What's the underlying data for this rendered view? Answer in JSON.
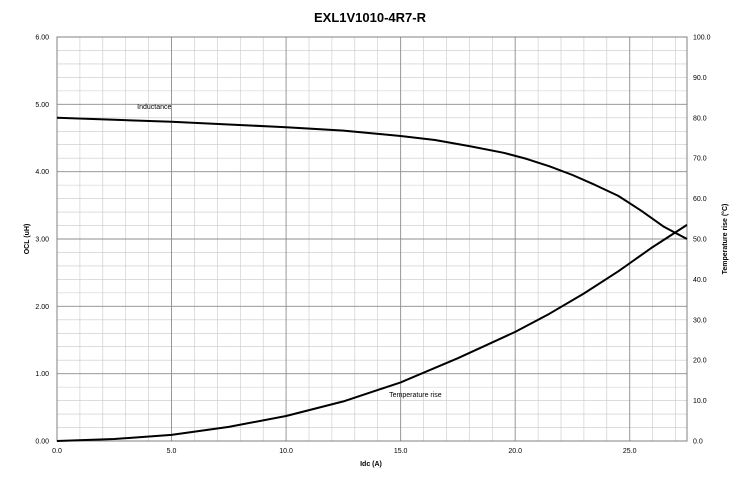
{
  "chart_data": {
    "type": "line",
    "title": "EXL1V1010-4R7-R",
    "xlabel": "Idc (A)",
    "ylabel": "OCL (uH)",
    "y2label": "Temperature rise (°C)",
    "xlim": [
      0,
      27.5
    ],
    "ylim": [
      0,
      6
    ],
    "y2lim": [
      0,
      100
    ],
    "x_ticks": [
      0,
      5,
      10,
      15,
      20,
      25
    ],
    "x_tick_labels": [
      "0.0",
      "5.0",
      "10.0",
      "15.0",
      "20.0",
      "25.0"
    ],
    "y_ticks": [
      0,
      1,
      2,
      3,
      4,
      5,
      6
    ],
    "y_tick_labels": [
      "0.00",
      "1.00",
      "2.00",
      "3.00",
      "4.00",
      "5.00",
      "6.00"
    ],
    "y2_ticks": [
      0,
      10,
      20,
      30,
      40,
      50,
      60,
      70,
      80,
      90,
      100
    ],
    "y2_tick_labels": [
      "0.0",
      "10.0",
      "20.0",
      "30.0",
      "40.0",
      "50.0",
      "60.0",
      "70.0",
      "80.0",
      "90.0",
      "100.0"
    ],
    "grid": true,
    "series": [
      {
        "name": "Inductance",
        "axis": "left",
        "label_at": [
          3.5,
          4.93
        ],
        "color": "#000000",
        "x": [
          0,
          2.5,
          5,
          7.5,
          10,
          12.5,
          15,
          16.5,
          18,
          19.5,
          20.5,
          21.5,
          22.5,
          23.5,
          24.5,
          25.5,
          26.5,
          27.5
        ],
        "y": [
          4.8,
          4.77,
          4.74,
          4.7,
          4.66,
          4.61,
          4.53,
          4.47,
          4.38,
          4.28,
          4.19,
          4.08,
          3.95,
          3.8,
          3.64,
          3.42,
          3.18,
          3.0
        ]
      },
      {
        "name": "Temperature rise",
        "axis": "right",
        "label_at": [
          14.5,
          10.9
        ],
        "color": "#000000",
        "x": [
          0,
          2.5,
          5,
          7.5,
          10,
          12.5,
          15,
          17.5,
          20,
          21.5,
          23,
          24.5,
          26,
          27.5
        ],
        "y": [
          0,
          0.5,
          1.5,
          3.5,
          6.2,
          9.8,
          14.5,
          20.5,
          27,
          31.5,
          36.5,
          42,
          48,
          53.5
        ]
      }
    ]
  }
}
